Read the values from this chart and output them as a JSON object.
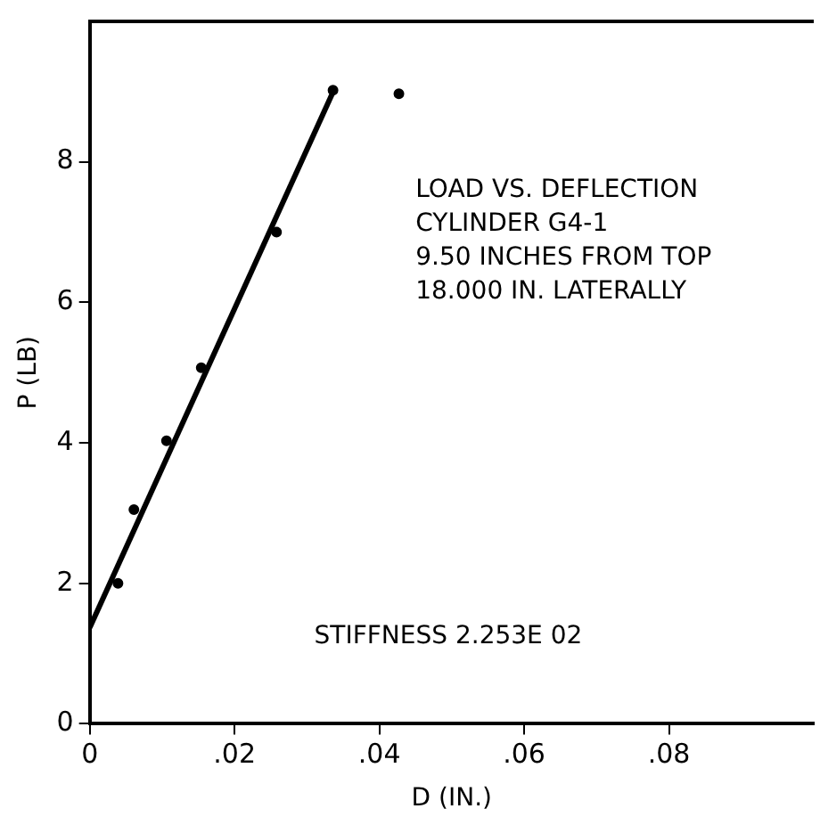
{
  "chart_data": {
    "type": "scatter",
    "xlabel": "D (IN.)",
    "ylabel": "P (LB)",
    "annotations": [
      "LOAD VS. DEFLECTION",
      "CYLINDER G4-1",
      "9.50 INCHES FROM TOP",
      "18.000 IN. LATERALLY",
      "STIFFNESS 2.253E 02"
    ],
    "series": [
      {
        "color": "#000000",
        "marker": "circle",
        "x": [
          0.0039,
          0.0061,
          0.0106,
          0.0154,
          0.0258,
          0.0336,
          0.0427
        ],
        "values": [
          2.0,
          3.05,
          4.03,
          5.07,
          7.0,
          9.02,
          8.97
        ]
      },
      {
        "type": "line",
        "color": "#000000",
        "marker": "none",
        "line_style": "solid",
        "x": [
          0,
          0.0338
        ],
        "values": [
          1.37,
          9.04
        ]
      }
    ],
    "xlim": [
      0,
      0.1
    ],
    "xticks": [
      0,
      {
        "value": 0.02,
        "label": ".02"
      },
      {
        "value": 0.04,
        "label": ".04"
      },
      {
        "value": 0.06,
        "label": ".06"
      },
      {
        "value": 0.08,
        "label": ".08"
      }
    ],
    "ylim": [
      0,
      10
    ],
    "yticks": [
      0,
      2,
      4,
      6,
      8
    ],
    "grid": false,
    "legend": false
  }
}
